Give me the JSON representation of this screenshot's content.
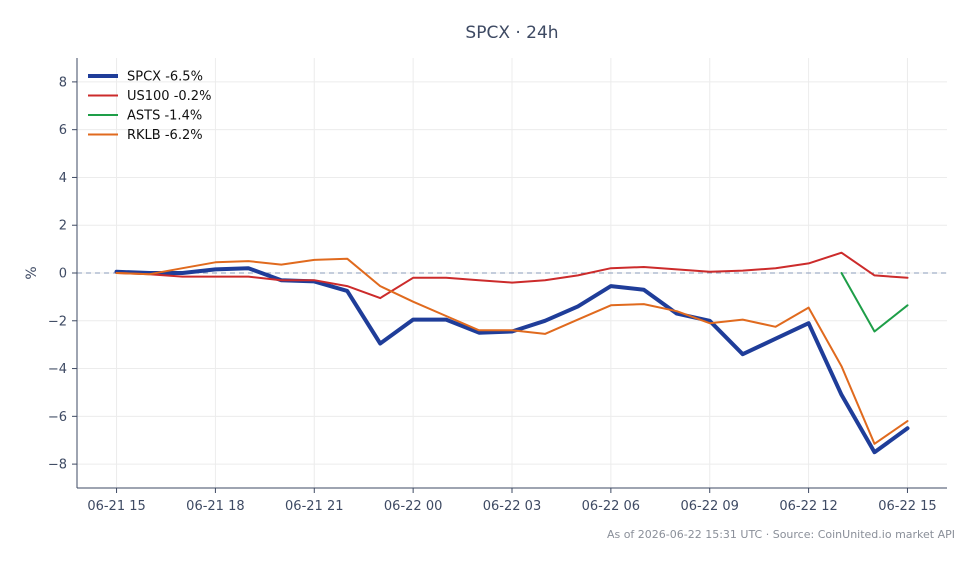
{
  "chart_data": {
    "type": "line",
    "title": "SPCX · 24h",
    "xlabel": "",
    "ylabel": "%",
    "x_ticks": [
      "06-21 15",
      "06-21 18",
      "06-21 21",
      "06-22 00",
      "06-22 03",
      "06-22 06",
      "06-22 09",
      "06-22 12",
      "06-22 15"
    ],
    "x_hours_range": [
      -1.2,
      25.2
    ],
    "ylim": [
      -9,
      9
    ],
    "y_ticks": [
      -8,
      -6,
      -4,
      -2,
      0,
      2,
      4,
      6,
      8
    ],
    "grid": true,
    "legend_position": "top-left",
    "zero_line": true,
    "series": [
      {
        "name": "SPCX -6.5%",
        "color": "#1f3d99",
        "width": 4,
        "x": [
          0,
          1,
          2,
          3,
          4,
          5,
          6,
          7,
          8,
          9,
          10,
          11,
          12,
          13,
          14,
          15,
          16,
          17,
          18,
          19,
          20,
          21,
          22,
          23,
          24
        ],
        "values": [
          0.05,
          0.0,
          0.0,
          0.15,
          0.2,
          -0.3,
          -0.35,
          -0.75,
          -2.95,
          -1.95,
          -1.95,
          -2.5,
          -2.45,
          -2.0,
          -1.4,
          -0.55,
          -0.7,
          -1.7,
          -2.0,
          -3.4,
          -2.75,
          -2.1,
          -5.1,
          -7.5,
          -6.5
        ]
      },
      {
        "name": "US100 -0.2%",
        "color": "#cc2b2b",
        "width": 2,
        "x": [
          0,
          1,
          2,
          3,
          4,
          5,
          6,
          7,
          8,
          9,
          10,
          11,
          12,
          13,
          14,
          15,
          16,
          17,
          18,
          19,
          20,
          21,
          22,
          23,
          24
        ],
        "values": [
          0.0,
          -0.05,
          -0.15,
          -0.15,
          -0.15,
          -0.3,
          -0.3,
          -0.55,
          -1.05,
          -0.2,
          -0.2,
          -0.3,
          -0.4,
          -0.3,
          -0.1,
          0.2,
          0.25,
          0.15,
          0.05,
          0.1,
          0.2,
          0.4,
          0.85,
          -0.1,
          -0.2
        ]
      },
      {
        "name": "ASTS -1.4%",
        "color": "#1e9e48",
        "width": 2,
        "x": [
          22,
          23,
          24
        ],
        "values": [
          0.0,
          -2.45,
          -1.35
        ]
      },
      {
        "name": "RKLB -6.2%",
        "color": "#e06a1e",
        "width": 2,
        "x": [
          0,
          1,
          2,
          3,
          4,
          5,
          6,
          7,
          8,
          9,
          10,
          11,
          12,
          13,
          14,
          15,
          16,
          17,
          18,
          19,
          20,
          21,
          22,
          23,
          24
        ],
        "values": [
          0.0,
          -0.05,
          0.2,
          0.45,
          0.5,
          0.35,
          0.55,
          0.6,
          -0.55,
          -1.2,
          -1.8,
          -2.4,
          -2.4,
          -2.55,
          -1.95,
          -1.35,
          -1.3,
          -1.6,
          -2.1,
          -1.95,
          -2.25,
          -1.45,
          -3.9,
          -7.15,
          -6.2
        ]
      }
    ],
    "footnote": "As of 2026-06-22 15:31 UTC · Source: CoinUnited.io market API"
  }
}
